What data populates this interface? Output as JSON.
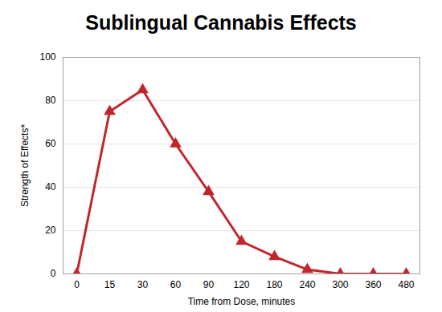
{
  "chart_data": {
    "type": "line",
    "title": "Sublingual Cannabis Effects",
    "x_label": "Time from Dose, minutes",
    "y_label": "Strength of Effects*",
    "categories": [
      "0",
      "15",
      "30",
      "60",
      "90",
      "120",
      "180",
      "240",
      "300",
      "360",
      "480"
    ],
    "values": [
      0,
      75,
      85,
      60,
      38,
      15,
      8,
      2,
      0,
      0,
      0
    ],
    "color": "#c0272d",
    "marker": "triangle",
    "line_style": "solid",
    "ylim": [
      0,
      100
    ],
    "yticks": [
      0,
      20,
      40,
      60,
      80,
      100
    ],
    "grid": true
  }
}
